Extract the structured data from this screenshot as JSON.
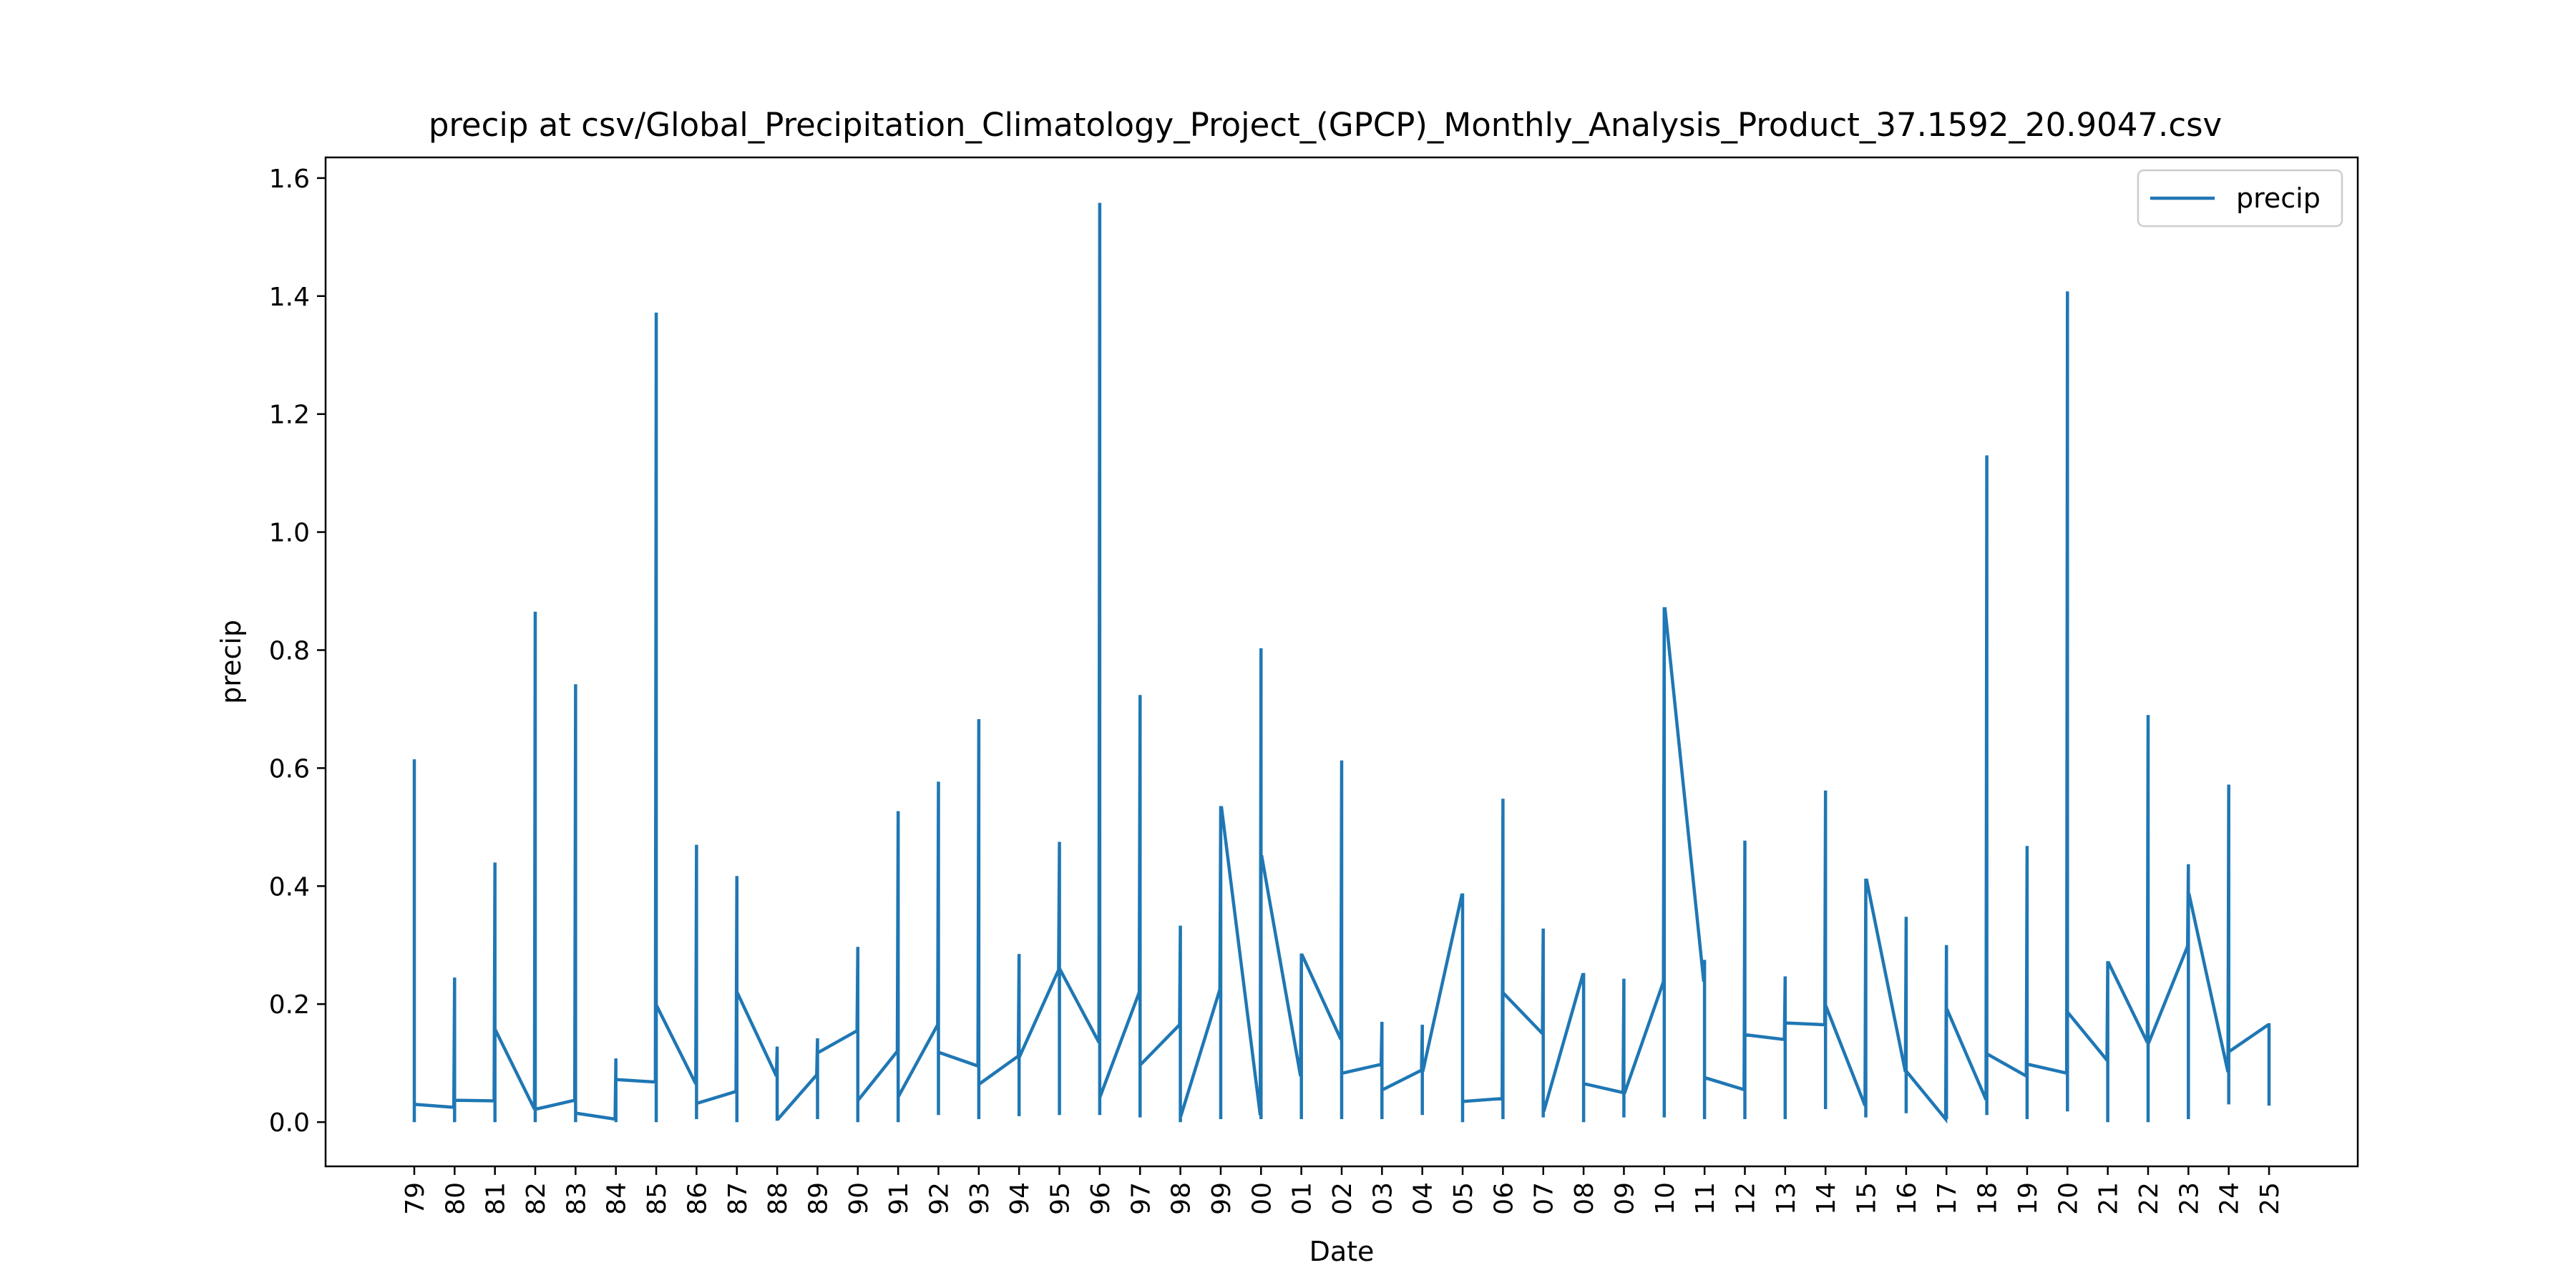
{
  "chart_data": {
    "type": "line",
    "title": "precip at csv/Global_Precipitation_Climatology_Project_(GPCP)_Monthly_Analysis_Product_37.1592_20.9047.csv",
    "xlabel": "Date",
    "ylabel": "precip",
    "categories": [
      "79",
      "80",
      "81",
      "82",
      "83",
      "84",
      "85",
      "86",
      "87",
      "88",
      "89",
      "90",
      "91",
      "92",
      "93",
      "94",
      "95",
      "96",
      "97",
      "98",
      "99",
      "00",
      "01",
      "02",
      "03",
      "04",
      "05",
      "06",
      "07",
      "08",
      "09",
      "10",
      "11",
      "12",
      "13",
      "14",
      "15",
      "16",
      "17",
      "18",
      "19",
      "20",
      "21",
      "22",
      "23",
      "24",
      "25"
    ],
    "yticks": [
      "0.0",
      "0.2",
      "0.4",
      "0.6",
      "0.8",
      "1.0",
      "1.2",
      "1.4",
      "1.6"
    ],
    "ylim": [
      -0.075,
      1.635
    ],
    "xlim": [
      -2.2,
      48.2
    ],
    "grid": false,
    "legend": {
      "position": "upper right",
      "entries": [
        "precip"
      ]
    },
    "colors": {
      "series": "#1f77b4"
    },
    "series": [
      {
        "name": "precip",
        "x": [
          0,
          0,
          0,
          0,
          0.02,
          0.98,
          1,
          1,
          1,
          1.02,
          1.98,
          2,
          2,
          2,
          2.02,
          2.98,
          3,
          3,
          3,
          3.02,
          3.98,
          4,
          4,
          4,
          4.02,
          4.98,
          5,
          5,
          5,
          5.02,
          5.98,
          6,
          6,
          6,
          6.02,
          6.98,
          7,
          7,
          7,
          7.02,
          7.98,
          8,
          8,
          8,
          8.02,
          8.98,
          9,
          9,
          9,
          9.02,
          9.98,
          10,
          10,
          10,
          10.02,
          10.98,
          11,
          11,
          11,
          11.02,
          11.98,
          12,
          12,
          12,
          12.02,
          12.98,
          13,
          13,
          13,
          13.02,
          13.98,
          14,
          14,
          14,
          14.02,
          14.98,
          15,
          15,
          15,
          15.02,
          15.98,
          16,
          16,
          16,
          16.02,
          16.98,
          17,
          17,
          17,
          17.02,
          17.98,
          18,
          18,
          18,
          18.02,
          18.98,
          19,
          19,
          19,
          19.02,
          19.98,
          20,
          20,
          20,
          20.02,
          20.98,
          21,
          21,
          21,
          21.02,
          21.98,
          22,
          22,
          22,
          22.02,
          22.98,
          23,
          23,
          23,
          23.02,
          23.98,
          24,
          24,
          24,
          24.02,
          24.98,
          25,
          25,
          25,
          25.02,
          25.98,
          26,
          26,
          26,
          26.02,
          26.98,
          27,
          27,
          27,
          27.02,
          27.98,
          28,
          28,
          28,
          28.02,
          28.98,
          29,
          29,
          29,
          29.02,
          29.98,
          30,
          30,
          30,
          30.02,
          30.98,
          31,
          31,
          31,
          31.02,
          31.98,
          32,
          32,
          32,
          32.02,
          32.98,
          33,
          33,
          33,
          33.02,
          33.98,
          34,
          34,
          34,
          34.02,
          34.98,
          35,
          35,
          35,
          35.02,
          35.98,
          36,
          36,
          36,
          36.02,
          36.98,
          37,
          37,
          37,
          37.02,
          37.98,
          38,
          38,
          38,
          38.02,
          38.98,
          39,
          39,
          39,
          39.02,
          39.98,
          40,
          40,
          40,
          40.02,
          40.98,
          41,
          41,
          41,
          41.02,
          41.98,
          42,
          42,
          42,
          42.02,
          42.98,
          43,
          43,
          43,
          43.02,
          43.98,
          44,
          44,
          44,
          44.02,
          44.98,
          45,
          45,
          45,
          45.02,
          45.98,
          46,
          46
        ],
        "y": [
          0.32,
          0.615,
          0.0,
          0.03,
          0.03,
          0.025,
          0.245,
          0.0,
          0.037,
          0.037,
          0.036,
          0.44,
          0.0,
          0.155,
          0.155,
          0.022,
          0.865,
          0.0,
          0.022,
          0.022,
          0.037,
          0.742,
          0.0,
          0.015,
          0.015,
          0.005,
          0.108,
          0.0,
          0.072,
          0.072,
          0.068,
          1.372,
          0.0,
          0.196,
          0.196,
          0.065,
          0.47,
          0.005,
          0.032,
          0.032,
          0.052,
          0.417,
          0.0,
          0.218,
          0.218,
          0.078,
          0.128,
          0.005,
          0.005,
          0.005,
          0.08,
          0.142,
          0.005,
          0.118,
          0.118,
          0.155,
          0.297,
          0.0,
          0.038,
          0.038,
          0.12,
          0.527,
          0.0,
          0.045,
          0.045,
          0.165,
          0.577,
          0.012,
          0.118,
          0.118,
          0.095,
          0.683,
          0.005,
          0.065,
          0.065,
          0.112,
          0.285,
          0.01,
          0.112,
          0.112,
          0.258,
          0.475,
          0.012,
          0.258,
          0.258,
          0.135,
          1.558,
          0.012,
          0.045,
          0.045,
          0.22,
          0.724,
          0.008,
          0.098,
          0.098,
          0.165,
          0.333,
          0.0,
          0.012,
          0.012,
          0.225,
          0.533,
          0.005,
          0.533,
          0.533,
          0.012,
          0.803,
          0.005,
          0.45,
          0.45,
          0.078,
          0.283,
          0.005,
          0.283,
          0.283,
          0.14,
          0.613,
          0.005,
          0.083,
          0.083,
          0.098,
          0.17,
          0.005,
          0.055,
          0.055,
          0.088,
          0.165,
          0.012,
          0.088,
          0.088,
          0.385,
          0.385,
          0.0,
          0.035,
          0.035,
          0.04,
          0.548,
          0.005,
          0.218,
          0.218,
          0.15,
          0.328,
          0.008,
          0.02,
          0.02,
          0.25,
          0.25,
          0.0,
          0.065,
          0.065,
          0.05,
          0.243,
          0.008,
          0.05,
          0.05,
          0.238,
          0.87,
          0.008,
          0.87,
          0.87,
          0.238,
          0.275,
          0.005,
          0.075,
          0.075,
          0.055,
          0.477,
          0.005,
          0.148,
          0.148,
          0.14,
          0.247,
          0.005,
          0.168,
          0.168,
          0.165,
          0.562,
          0.022,
          0.195,
          0.195,
          0.028,
          0.41,
          0.008,
          0.41,
          0.41,
          0.085,
          0.348,
          0.015,
          0.085,
          0.085,
          0.005,
          0.3,
          0.005,
          0.19,
          0.19,
          0.038,
          1.13,
          0.012,
          0.115,
          0.115,
          0.078,
          0.468,
          0.005,
          0.098,
          0.098,
          0.083,
          1.408,
          0.018,
          0.185,
          0.185,
          0.105,
          0.27,
          0.0,
          0.27,
          0.27,
          0.135,
          0.69,
          0.0,
          0.135,
          0.135,
          0.298,
          0.437,
          0.005,
          0.385,
          0.385,
          0.085,
          0.572,
          0.03,
          0.12,
          0.12,
          0.165,
          0.165,
          0.028
        ]
      }
    ]
  }
}
